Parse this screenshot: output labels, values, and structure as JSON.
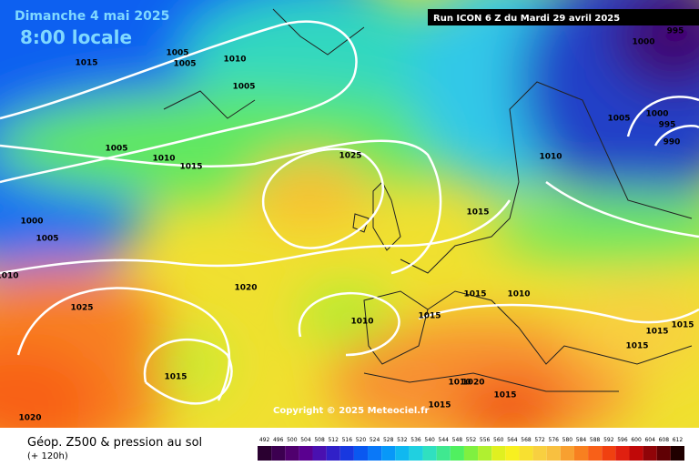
{
  "header": {
    "date": "Dimanche 4 mai 2025",
    "time": "8:00 locale",
    "run": "Run ICON 6 Z du Mardi 29 avril 2025"
  },
  "copyright": "Copyright © 2025 Meteociel.fr",
  "footer": {
    "title": "Géop. Z500 & pression au sol",
    "lead": "(+ 120h)"
  },
  "isobar_labels": [
    1015,
    1005,
    1005,
    1010,
    1005,
    1005,
    1010,
    1015,
    1025,
    1000,
    1005,
    1010,
    1020,
    1025,
    1010,
    1015,
    1015,
    1010,
    1015,
    1010,
    1005,
    1000,
    995,
    990,
    1000,
    995,
    1015,
    1015,
    1015,
    1015,
    1020,
    1015,
    1010,
    1020,
    1015
  ],
  "legend": {
    "values": [
      492,
      496,
      500,
      504,
      508,
      512,
      516,
      520,
      524,
      528,
      532,
      536,
      540,
      544,
      548,
      552,
      556,
      560,
      564,
      568,
      572,
      576,
      580,
      584,
      588,
      592,
      596,
      600,
      604,
      608,
      612
    ],
    "colors": [
      "#2a0030",
      "#3c0050",
      "#50006e",
      "#5a0090",
      "#4a10b0",
      "#3020c8",
      "#1838e0",
      "#0a58f0",
      "#0a78f8",
      "#0898f8",
      "#10b8f0",
      "#20d0e0",
      "#30e0c0",
      "#40e890",
      "#50f060",
      "#80f040",
      "#b0f030",
      "#e0f020",
      "#f8f020",
      "#f8e030",
      "#f8d040",
      "#f8c040",
      "#f8a030",
      "#f88020",
      "#f86018",
      "#f04010",
      "#e02010",
      "#c00808",
      "#900408",
      "#600004",
      "#200000"
    ]
  }
}
